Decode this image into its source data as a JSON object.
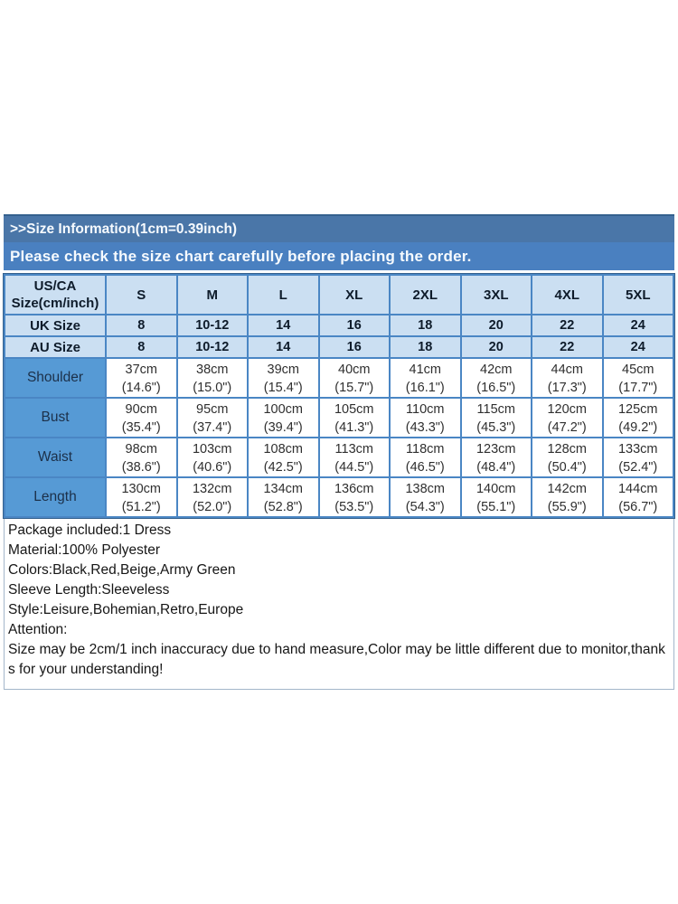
{
  "banner": {
    "title": ">>Size Information(1cm=0.39inch)",
    "subtitle": "Please check the size chart carefully before placing the order."
  },
  "size_table": {
    "corner_header": [
      "US/CA",
      "Size(cm/inch)"
    ],
    "size_columns": [
      "S",
      "M",
      "L",
      "XL",
      "2XL",
      "3XL",
      "4XL",
      "5XL"
    ],
    "uk_row": {
      "label": "UK Size",
      "values": [
        "8",
        "10-12",
        "14",
        "16",
        "18",
        "20",
        "22",
        "24"
      ]
    },
    "au_row": {
      "label": "AU Size",
      "values": [
        "8",
        "10-12",
        "14",
        "16",
        "18",
        "20",
        "22",
        "24"
      ]
    },
    "measurement_rows": [
      {
        "label": "Shoulder",
        "cm": [
          "37cm",
          "38cm",
          "39cm",
          "40cm",
          "41cm",
          "42cm",
          "44cm",
          "45cm"
        ],
        "inch": [
          "(14.6\")",
          "(15.0\")",
          "(15.4\")",
          "(15.7\")",
          "(16.1\")",
          "(16.5\")",
          "(17.3\")",
          "(17.7\")"
        ]
      },
      {
        "label": "Bust",
        "cm": [
          "90cm",
          "95cm",
          "100cm",
          "105cm",
          "110cm",
          "115cm",
          "120cm",
          "125cm"
        ],
        "inch": [
          "(35.4\")",
          "(37.4\")",
          "(39.4\")",
          "(41.3\")",
          "(43.3\")",
          "(45.3\")",
          "(47.2\")",
          "(49.2\")"
        ]
      },
      {
        "label": "Waist",
        "cm": [
          "98cm",
          "103cm",
          "108cm",
          "113cm",
          "118cm",
          "123cm",
          "128cm",
          "133cm"
        ],
        "inch": [
          "(38.6\")",
          "(40.6\")",
          "(42.5\")",
          "(44.5\")",
          "(46.5\")",
          "(48.4\")",
          "(50.4\")",
          "(52.4\")"
        ]
      },
      {
        "label": "Length",
        "cm": [
          "130cm",
          "132cm",
          "134cm",
          "136cm",
          "138cm",
          "140cm",
          "142cm",
          "144cm"
        ],
        "inch": [
          "(51.2\")",
          "(52.0\")",
          "(52.8\")",
          "(53.5\")",
          "(54.3\")",
          "(55.1\")",
          "(55.9\")",
          "(56.7\")"
        ]
      }
    ]
  },
  "notes": {
    "lines": [
      "Package included:1 Dress",
      "Material:100% Polyester",
      "Colors:Black,Red,Beige,Army Green",
      "Sleeve Length:Sleeveless",
      "Style:Leisure,Bohemian,Retro,Europe",
      "Attention:",
      "Size may be 2cm/1 inch inaccuracy due to hand measure,Color may be little different due to monitor,thanks for your understanding!"
    ]
  },
  "colors": {
    "banner_top_bg": "#4a76a8",
    "banner_bottom_bg": "#4a80c0",
    "table_light_bg": "#cbdff2",
    "label_cell_bg": "#569ad5",
    "table_border": "#4a86c4",
    "notes_border": "#a3b6ca"
  }
}
